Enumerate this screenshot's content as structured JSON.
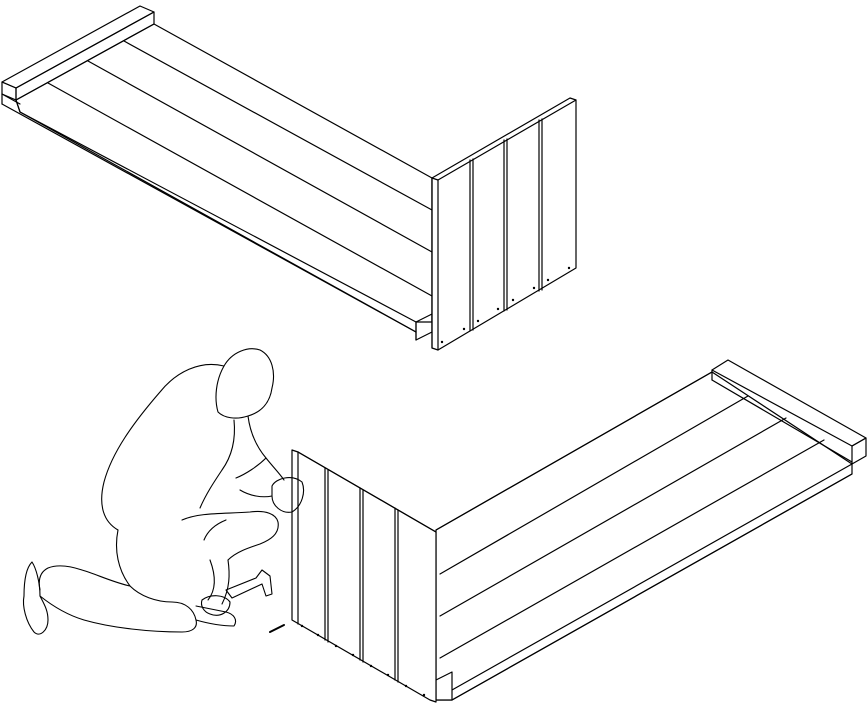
{
  "figure": {
    "description_visible_text": "",
    "panels": [
      {
        "id": "assembled-panel",
        "subject": "bench-frame-assembled"
      },
      {
        "id": "assembly-step-panel",
        "subject": "person-nailing-end-panel"
      }
    ]
  },
  "colors": {
    "ink": "#000000",
    "paper": "#ffffff"
  }
}
